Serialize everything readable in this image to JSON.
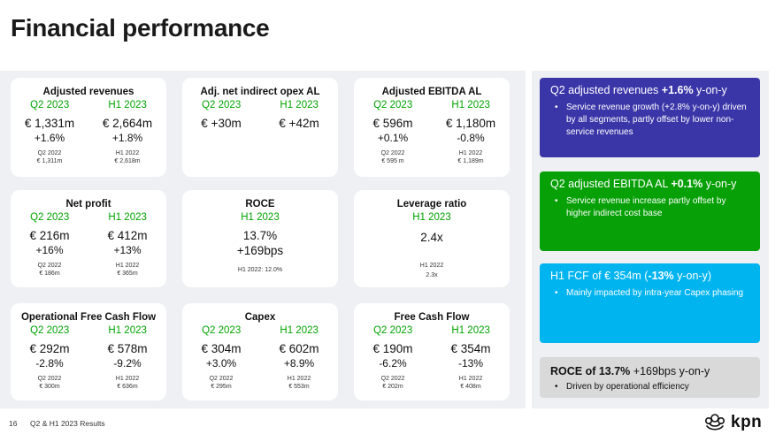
{
  "title": "Financial performance",
  "cards": [
    {
      "title": "Adjusted revenues",
      "sub": [
        "Q2 2023",
        "H1 2023"
      ],
      "main": [
        "€ 1,331m",
        "€ 2,664m"
      ],
      "delta": [
        "+1.6%",
        "+1.8%"
      ],
      "prior_label": [
        "Q2 2022",
        "H1 2022"
      ],
      "prior_value": [
        "€ 1,311m",
        "€ 2,618m"
      ]
    },
    {
      "title": "Adj. net indirect opex AL",
      "sub": [
        "Q2 2023",
        "H1 2023"
      ],
      "main": [
        "€ +30m",
        "€ +42m"
      ]
    },
    {
      "title": "Adjusted EBITDA AL",
      "sub": [
        "Q2 2023",
        "H1 2023"
      ],
      "main": [
        "€ 596m",
        "€ 1,180m"
      ],
      "delta": [
        "+0.1%",
        "-0.8%"
      ],
      "prior_label": [
        "Q2 2022",
        "H1 2022"
      ],
      "prior_value": [
        "€ 595 m",
        "€ 1,189m"
      ]
    },
    {
      "title": "Net profit",
      "sub": [
        "Q2 2023",
        "H1 2023"
      ],
      "main": [
        "€ 216m",
        "€ 412m"
      ],
      "delta": [
        "+16%",
        "+13%"
      ],
      "prior_label": [
        "Q2 2022",
        "H1 2022"
      ],
      "prior_value": [
        "€ 186m",
        "€ 365m"
      ]
    },
    {
      "title": "ROCE",
      "sub": [
        "H1 2023"
      ],
      "main": [
        "13.7%"
      ],
      "delta": [
        "+169bps"
      ],
      "foot": [
        "H1 2022: 12.0%"
      ]
    },
    {
      "title": "Leverage ratio",
      "sub": [
        "H1 2023"
      ],
      "main": [
        "2.4x"
      ],
      "foot": [
        "H1 2022",
        "2.3x"
      ]
    },
    {
      "title": "Operational Free Cash Flow",
      "sub": [
        "Q2 2023",
        "H1 2023"
      ],
      "main": [
        "€ 292m",
        "€ 578m"
      ],
      "delta": [
        "-2.8%",
        "-9.2%"
      ],
      "prior_label": [
        "Q2 2022",
        "H1 2022"
      ],
      "prior_value": [
        "€ 300m",
        "€ 636m"
      ]
    },
    {
      "title": "Capex",
      "sub": [
        "Q2 2023",
        "H1 2023"
      ],
      "main": [
        "€ 304m",
        "€ 602m"
      ],
      "delta": [
        "+3.0%",
        "+8.9%"
      ],
      "prior_label": [
        "Q2 2022",
        "H1 2022"
      ],
      "prior_value": [
        "€ 295m",
        "€ 553m"
      ]
    },
    {
      "title": "Free Cash Flow",
      "sub": [
        "Q2 2023",
        "H1 2023"
      ],
      "main": [
        "€ 190m",
        "€ 354m"
      ],
      "delta": [
        "-6.2%",
        "-13%"
      ],
      "prior_label": [
        "Q2 2022",
        "H1 2022"
      ],
      "prior_value": [
        "€ 202m",
        "€ 408m"
      ]
    }
  ],
  "panels": [
    {
      "pre": "Q2 adjusted revenues ",
      "bold": "+1.6%",
      "post": " y-on-y",
      "bullet": "Service revenue growth (+2.8% y-on-y) driven by all segments, partly offset by lower non-service revenues"
    },
    {
      "pre": "Q2 adjusted EBITDA AL ",
      "bold": "+0.1%",
      "post": " y-on-y",
      "bullet": "Service revenue increase partly offset by higher indirect cost base"
    },
    {
      "pre": "H1 FCF of € 354m (",
      "bold": "-13%",
      "post": " y-on-y)",
      "bullet": "Mainly impacted by intra-year Capex phasing"
    },
    {
      "pre": "",
      "bold": "ROCE of 13.7%",
      "post": " +169bps y-on-y",
      "bullet": "Driven by operational efficiency"
    }
  ],
  "footer": {
    "page": "16",
    "text": "Q2 & H1 2023 Results"
  },
  "logo": {
    "text": "kpn"
  },
  "colors": {
    "accent_green": "#00a300",
    "panel_blue": "#3b36a8",
    "panel_green": "#07a007",
    "panel_cyan": "#00b4f0",
    "panel_grey": "#d9d9d9"
  }
}
